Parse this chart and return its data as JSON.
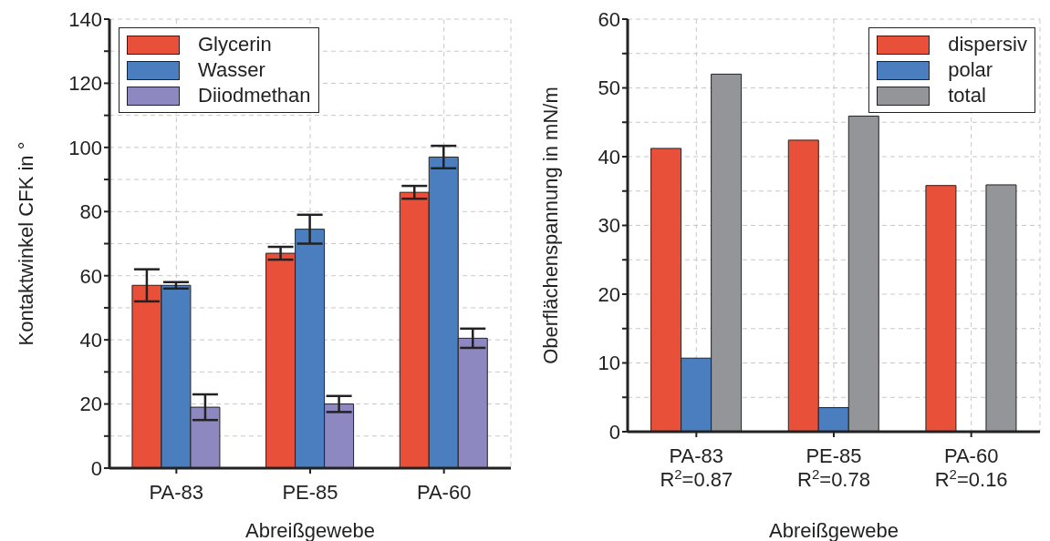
{
  "chart_data": [
    {
      "type": "bar",
      "xlabel": "Abreißgewebe",
      "ylabel": "Kontaktwinkel CFK in °",
      "categories": [
        "PA-83",
        "PE-85",
        "PA-60"
      ],
      "series": [
        {
          "name": "Glycerin",
          "color": "#e8503a",
          "values": [
            57,
            67,
            86
          ],
          "errors": [
            5,
            2,
            2
          ]
        },
        {
          "name": "Wasser",
          "color": "#4a7ebf",
          "values": [
            57,
            74.5,
            97
          ],
          "errors": [
            1,
            4.5,
            3.5
          ]
        },
        {
          "name": "Diiodmethan",
          "color": "#8e88c0",
          "values": [
            19,
            20,
            40.5
          ],
          "errors": [
            4,
            2.5,
            3
          ]
        }
      ],
      "ylim": [
        0,
        140
      ],
      "yticks": [
        0,
        {
          "value": 10,
          "label": null
        },
        20,
        {
          "value": 30,
          "label": null
        },
        40,
        {
          "value": 50,
          "label": null
        },
        60,
        {
          "value": 70,
          "label": null
        },
        80,
        {
          "value": 90,
          "label": null
        },
        100,
        {
          "value": 110,
          "label": null
        },
        120,
        {
          "value": 130,
          "label": null
        },
        140
      ],
      "grid": true,
      "legend": "top left"
    },
    {
      "type": "bar",
      "xlabel": "Abreißgewebe",
      "ylabel": "Oberflächenspannung in mN/m",
      "categories": [
        "PA-83\nR$^{2}$=0.87",
        "PE-85\nR$^{2}$=0.78",
        "PA-60\nR$^{2}$=0.16"
      ],
      "series": [
        {
          "name": "dispersiv",
          "color": "#e8503a",
          "values": [
            41.2,
            42.4,
            35.8
          ]
        },
        {
          "name": "polar",
          "color": "#4a7ebf",
          "values": [
            10.7,
            3.5,
            0
          ]
        },
        {
          "name": "total",
          "color": "#939598",
          "values": [
            52,
            45.9,
            35.9
          ]
        }
      ],
      "ylim": [
        0,
        60
      ],
      "yticks": [
        0,
        {
          "value": 5,
          "label": null
        },
        10,
        {
          "value": 15,
          "label": null
        },
        20,
        {
          "value": 25,
          "label": null
        },
        30,
        {
          "value": 35,
          "label": null
        },
        40,
        {
          "value": 45,
          "label": null
        },
        50,
        {
          "value": 55,
          "label": null
        },
        60
      ],
      "grid": true,
      "legend": "top right"
    }
  ]
}
